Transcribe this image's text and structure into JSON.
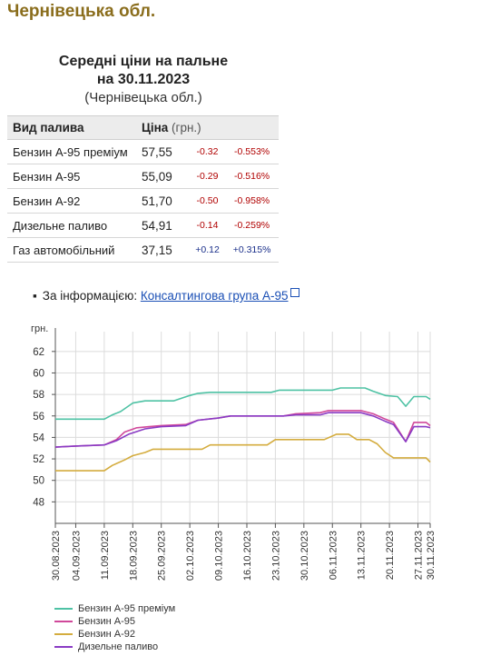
{
  "region_title": "Чернівецька обл.",
  "title": {
    "line1": "Середні ціни на пальне",
    "line2": "на 30.11.2023",
    "line3": "(Чернівецька обл.)"
  },
  "table": {
    "header_fuel": "Вид палива",
    "header_price": "Ціна",
    "header_unit": "(грн.)",
    "rows": [
      {
        "fuel": "Бензин А-95 преміум",
        "price": "57,55",
        "change": "-0.32",
        "change_pct": "-0.553%"
      },
      {
        "fuel": "Бензин А-95",
        "price": "55,09",
        "change": "-0.29",
        "change_pct": "-0.516%"
      },
      {
        "fuel": "Бензин А-92",
        "price": "51,70",
        "change": "-0.50",
        "change_pct": "-0.958%"
      },
      {
        "fuel": "Дизельне паливо",
        "price": "54,91",
        "change": "-0.14",
        "change_pct": "-0.259%"
      },
      {
        "fuel": "Газ автомобільний",
        "price": "37,15",
        "change": "+0.12",
        "change_pct": "+0.315%"
      }
    ]
  },
  "info": {
    "label": "За інформацією:",
    "link": "Консалтингова група А-95"
  },
  "colors": {
    "premium": "#4ec2a4",
    "a95": "#d0489a",
    "a92": "#d4ac3e",
    "diesel": "#8a3bc4",
    "negative": "#b00000",
    "positive": "#1a2f8a",
    "region_title": "#8a6d1c"
  },
  "chart_data": {
    "type": "line",
    "ylabel": "грн.",
    "ylim": [
      46,
      63
    ],
    "yticks": [
      48,
      50,
      52,
      54,
      56,
      58,
      60,
      62
    ],
    "xlim": [
      "30.08.2023",
      "30.11.2023"
    ],
    "xticks": [
      "30.08.2023",
      "04.09.2023",
      "11.09.2023",
      "18.09.2023",
      "25.09.2023",
      "02.10.2023",
      "09.10.2023",
      "16.10.2023",
      "23.10.2023",
      "30.10.2023",
      "06.11.2023",
      "13.11.2023",
      "20.11.2023",
      "27.11.2023",
      "30.11.2023"
    ],
    "grid": true,
    "legend": "bottom",
    "series": [
      {
        "name": "Бензин А-95 преміум",
        "color_key": "premium",
        "points": [
          [
            "30.08.2023",
            55.7
          ],
          [
            "11.09.2023",
            55.7
          ],
          [
            "13.09.2023",
            56.1
          ],
          [
            "15.09.2023",
            56.4
          ],
          [
            "18.09.2023",
            57.2
          ],
          [
            "21.09.2023",
            57.4
          ],
          [
            "28.09.2023",
            57.4
          ],
          [
            "02.10.2023",
            57.9
          ],
          [
            "04.10.2023",
            58.1
          ],
          [
            "07.10.2023",
            58.2
          ],
          [
            "22.10.2023",
            58.2
          ],
          [
            "24.10.2023",
            58.4
          ],
          [
            "06.11.2023",
            58.4
          ],
          [
            "08.11.2023",
            58.6
          ],
          [
            "14.11.2023",
            58.6
          ],
          [
            "16.11.2023",
            58.3
          ],
          [
            "19.11.2023",
            57.9
          ],
          [
            "22.11.2023",
            57.8
          ],
          [
            "24.11.2023",
            56.9
          ],
          [
            "26.11.2023",
            57.8
          ],
          [
            "29.11.2023",
            57.8
          ],
          [
            "30.11.2023",
            57.55
          ]
        ]
      },
      {
        "name": "Бензин А-95",
        "color_key": "a95",
        "points": [
          [
            "30.08.2023",
            53.1
          ],
          [
            "04.09.2023",
            53.2
          ],
          [
            "11.09.2023",
            53.3
          ],
          [
            "14.09.2023",
            53.8
          ],
          [
            "16.09.2023",
            54.5
          ],
          [
            "19.09.2023",
            54.9
          ],
          [
            "22.09.2023",
            55.0
          ],
          [
            "25.09.2023",
            55.1
          ],
          [
            "01.10.2023",
            55.2
          ],
          [
            "04.10.2023",
            55.6
          ],
          [
            "09.10.2023",
            55.8
          ],
          [
            "12.10.2023",
            56.0
          ],
          [
            "25.10.2023",
            56.0
          ],
          [
            "28.10.2023",
            56.2
          ],
          [
            "03.11.2023",
            56.3
          ],
          [
            "05.11.2023",
            56.5
          ],
          [
            "13.11.2023",
            56.5
          ],
          [
            "16.11.2023",
            56.2
          ],
          [
            "19.11.2023",
            55.7
          ],
          [
            "21.11.2023",
            55.4
          ],
          [
            "24.11.2023",
            53.6
          ],
          [
            "26.11.2023",
            55.4
          ],
          [
            "29.11.2023",
            55.4
          ],
          [
            "30.11.2023",
            55.09
          ]
        ]
      },
      {
        "name": "Бензин А-92",
        "color_key": "a92",
        "points": [
          [
            "30.08.2023",
            50.9
          ],
          [
            "11.09.2023",
            50.9
          ],
          [
            "13.09.2023",
            51.4
          ],
          [
            "16.09.2023",
            51.9
          ],
          [
            "18.09.2023",
            52.3
          ],
          [
            "21.09.2023",
            52.6
          ],
          [
            "23.09.2023",
            52.9
          ],
          [
            "05.10.2023",
            52.9
          ],
          [
            "07.10.2023",
            53.3
          ],
          [
            "21.10.2023",
            53.3
          ],
          [
            "23.10.2023",
            53.8
          ],
          [
            "04.11.2023",
            53.8
          ],
          [
            "07.11.2023",
            54.3
          ],
          [
            "10.11.2023",
            54.3
          ],
          [
            "12.11.2023",
            53.8
          ],
          [
            "15.11.2023",
            53.8
          ],
          [
            "17.11.2023",
            53.4
          ],
          [
            "19.11.2023",
            52.6
          ],
          [
            "21.11.2023",
            52.1
          ],
          [
            "29.11.2023",
            52.1
          ],
          [
            "30.11.2023",
            51.7
          ]
        ]
      },
      {
        "name": "Дизельне паливо",
        "color_key": "diesel",
        "points": [
          [
            "30.08.2023",
            53.1
          ],
          [
            "04.09.2023",
            53.2
          ],
          [
            "11.09.2023",
            53.3
          ],
          [
            "14.09.2023",
            53.7
          ],
          [
            "17.09.2023",
            54.3
          ],
          [
            "21.09.2023",
            54.8
          ],
          [
            "25.09.2023",
            55.0
          ],
          [
            "01.10.2023",
            55.1
          ],
          [
            "04.10.2023",
            55.6
          ],
          [
            "09.10.2023",
            55.8
          ],
          [
            "12.10.2023",
            56.0
          ],
          [
            "25.10.2023",
            56.0
          ],
          [
            "28.10.2023",
            56.1
          ],
          [
            "03.11.2023",
            56.1
          ],
          [
            "05.11.2023",
            56.3
          ],
          [
            "13.11.2023",
            56.3
          ],
          [
            "16.11.2023",
            56.0
          ],
          [
            "19.11.2023",
            55.5
          ],
          [
            "21.11.2023",
            55.2
          ],
          [
            "24.11.2023",
            53.6
          ],
          [
            "26.11.2023",
            55.0
          ],
          [
            "29.11.2023",
            55.0
          ],
          [
            "30.11.2023",
            54.91
          ]
        ]
      }
    ]
  }
}
